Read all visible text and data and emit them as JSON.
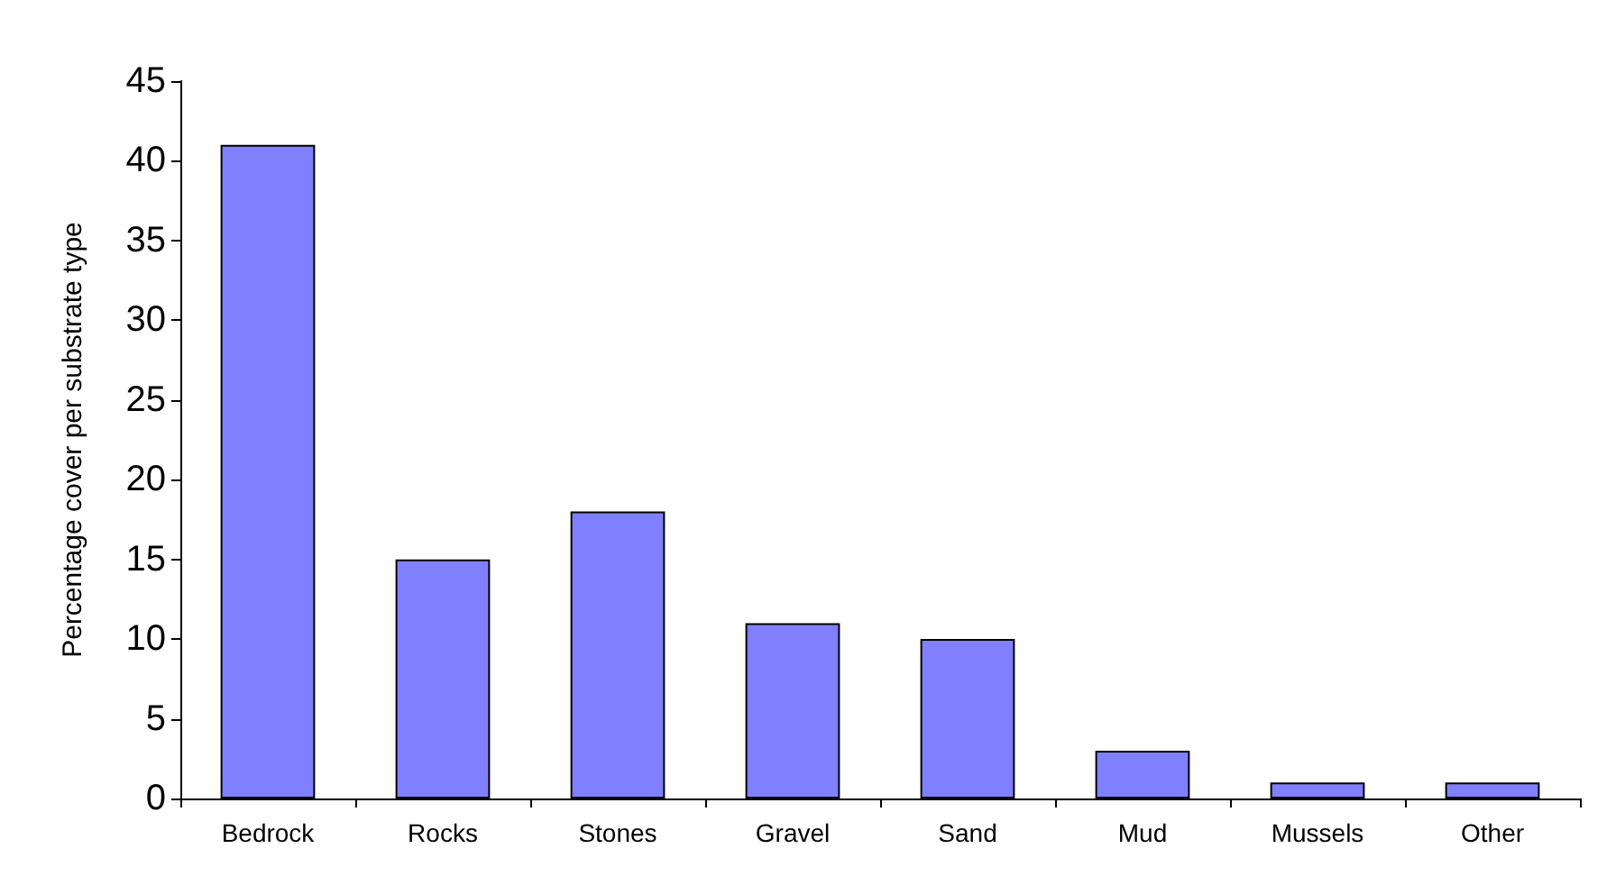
{
  "chart_data": {
    "type": "bar",
    "ylabel": "Percentage cover per substrate type",
    "categories": [
      "Bedrock",
      "Rocks",
      "Stones",
      "Gravel",
      "Sand",
      "Mud",
      "Mussels",
      "Other"
    ],
    "values": [
      41,
      15,
      18,
      11,
      10,
      3,
      1,
      1
    ],
    "color": "#8080ff",
    "ylim": [
      0,
      45
    ],
    "yticks": [
      0,
      5,
      10,
      15,
      20,
      25,
      30,
      35,
      40,
      45
    ],
    "grid": false
  }
}
